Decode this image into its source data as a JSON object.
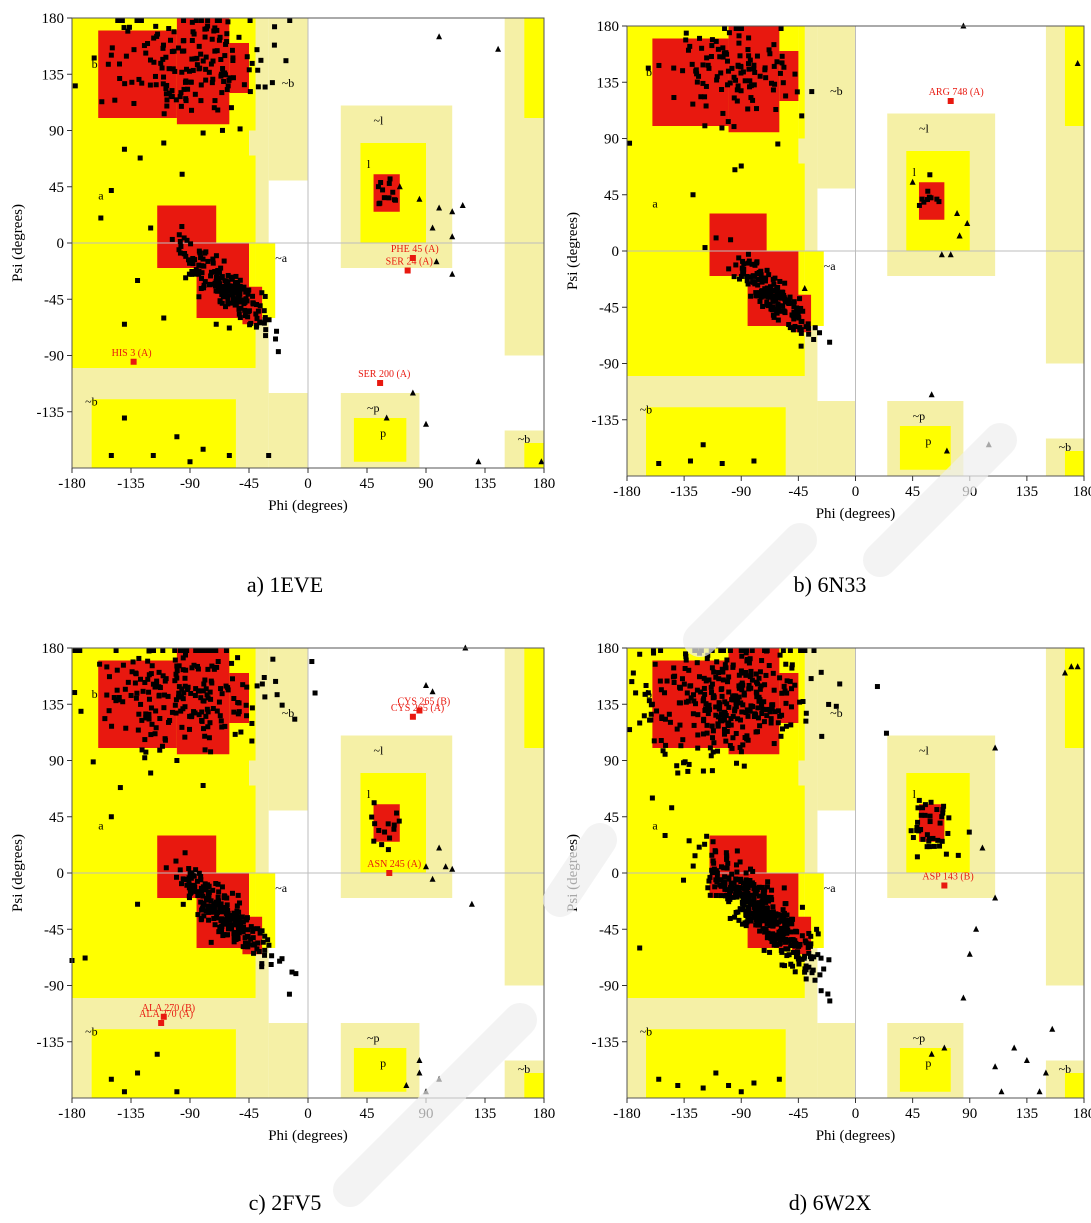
{
  "colors": {
    "core": "#e8180f",
    "allowed": "#ffff00",
    "generous": "#f5f0a6",
    "outlier": "#e8180f",
    "grid": "#bdbdbd"
  },
  "axes": {
    "xlabel": "Phi (degrees)",
    "ylabel": "Psi (degrees)",
    "xticks": [
      "-180",
      "-135",
      "-90",
      "-45",
      "0",
      "45",
      "90",
      "135",
      "180"
    ],
    "yticks": [
      "180",
      "135",
      "90",
      "45",
      "0",
      "-45",
      "-90",
      "-135"
    ]
  },
  "region_letters": {
    "b_core": "b",
    "a_core": "a",
    "l_core": "l",
    "p_core": "p",
    "b_gen": "~b",
    "a_gen": "~a",
    "l_gen": "~l",
    "p_gen": "~p"
  },
  "chart_data": [
    {
      "type": "scatter",
      "caption": "a) 1EVE",
      "xlim": [
        -180,
        180
      ],
      "ylim": [
        -180,
        180
      ],
      "outliers": [
        {
          "label": "HIS 3 (A)",
          "x": -133,
          "y": -95
        },
        {
          "label": "PHE 45 (A)",
          "x": 80,
          "y": -12
        },
        {
          "label": "SER 24 (A)",
          "x": 76,
          "y": -22
        },
        {
          "label": "SER 200 (A)",
          "x": 55,
          "y": -112
        }
      ],
      "clusters": [
        {
          "cx": -95,
          "cy": 145,
          "sx": 30,
          "sy": 22,
          "n": 170
        },
        {
          "cx": -62,
          "cy": -35,
          "sx": 20,
          "sy": 15,
          "n": 190
        },
        {
          "cx": 58,
          "cy": 40,
          "sx": 6,
          "sy": 8,
          "n": 12
        }
      ],
      "scatter_points": [
        [
          -140,
          75
        ],
        [
          -128,
          68
        ],
        [
          -110,
          80
        ],
        [
          -96,
          55
        ],
        [
          -80,
          88
        ],
        [
          -150,
          42
        ],
        [
          -158,
          20
        ],
        [
          -120,
          12
        ],
        [
          -130,
          -30
        ],
        [
          -110,
          -60
        ],
        [
          -140,
          -65
        ],
        [
          -70,
          -65
        ],
        [
          -60,
          -68
        ],
        [
          -150,
          -170
        ],
        [
          -118,
          -170
        ],
        [
          -80,
          -165
        ],
        [
          -60,
          -170
        ],
        [
          -90,
          -175
        ],
        [
          -140,
          -140
        ],
        [
          -30,
          -170
        ],
        [
          -100,
          -155
        ]
      ],
      "glycine_points": [
        [
          85,
          35
        ],
        [
          100,
          28
        ],
        [
          110,
          25
        ],
        [
          118,
          30
        ],
        [
          95,
          12
        ],
        [
          110,
          5
        ],
        [
          98,
          -15
        ],
        [
          110,
          -25
        ],
        [
          100,
          165
        ],
        [
          145,
          155
        ],
        [
          80,
          -120
        ],
        [
          90,
          -145
        ],
        [
          130,
          -175
        ],
        [
          178,
          -175
        ],
        [
          70,
          45
        ],
        [
          60,
          -140
        ]
      ]
    },
    {
      "type": "scatter",
      "caption": "b) 6N33",
      "xlim": [
        -180,
        180
      ],
      "ylim": [
        -180,
        180
      ],
      "outliers": [
        {
          "label": "ARG 748 (A)",
          "x": 75,
          "y": 120
        }
      ],
      "clusters": [
        {
          "cx": -100,
          "cy": 140,
          "sx": 25,
          "sy": 20,
          "n": 120
        },
        {
          "cx": -65,
          "cy": -35,
          "sx": 18,
          "sy": 14,
          "n": 170
        },
        {
          "cx": 58,
          "cy": 40,
          "sx": 6,
          "sy": 6,
          "n": 10
        }
      ],
      "scatter_points": [
        [
          -128,
          45
        ],
        [
          -95,
          65
        ],
        [
          -90,
          68
        ],
        [
          -155,
          -170
        ],
        [
          -130,
          -168
        ],
        [
          -105,
          -170
        ],
        [
          -80,
          -168
        ],
        [
          -120,
          -155
        ]
      ],
      "glycine_points": [
        [
          45,
          55
        ],
        [
          80,
          30
        ],
        [
          88,
          22
        ],
        [
          82,
          12
        ],
        [
          75,
          -3
        ],
        [
          68,
          -3
        ],
        [
          82,
          12
        ],
        [
          105,
          -155
        ],
        [
          -40,
          -30
        ],
        [
          60,
          -115
        ],
        [
          175,
          150
        ],
        [
          -45,
          -50
        ],
        [
          72,
          -160
        ],
        [
          85,
          180
        ]
      ]
    },
    {
      "type": "scatter",
      "caption": "c) 2FV5",
      "xlim": [
        -180,
        180
      ],
      "ylim": [
        -180,
        180
      ],
      "outliers": [
        {
          "label": "CYS 265 (B)",
          "x": 85,
          "y": 130
        },
        {
          "label": "CYS 265 (A)",
          "x": 80,
          "y": 125
        },
        {
          "label": "ASN 245 (A)",
          "x": 62,
          "y": 0
        },
        {
          "label": "ALA 270 (B)",
          "x": -110,
          "y": -115
        },
        {
          "label": "ALA 270 (A)",
          "x": -112,
          "y": -120
        }
      ],
      "clusters": [
        {
          "cx": -95,
          "cy": 145,
          "sx": 32,
          "sy": 22,
          "n": 220
        },
        {
          "cx": -65,
          "cy": -32,
          "sx": 20,
          "sy": 16,
          "n": 230
        },
        {
          "cx": 58,
          "cy": 38,
          "sx": 7,
          "sy": 9,
          "n": 14
        }
      ],
      "scatter_points": [
        [
          -120,
          80
        ],
        [
          -100,
          90
        ],
        [
          -80,
          70
        ],
        [
          -150,
          45
        ],
        [
          -130,
          -25
        ],
        [
          -180,
          -70
        ],
        [
          -170,
          -68
        ],
        [
          -115,
          -145
        ],
        [
          -130,
          -160
        ],
        [
          -140,
          -175
        ],
        [
          -100,
          -175
        ],
        [
          -150,
          -165
        ]
      ],
      "glycine_points": [
        [
          90,
          150
        ],
        [
          95,
          145
        ],
        [
          120,
          180
        ],
        [
          100,
          20
        ],
        [
          105,
          5
        ],
        [
          110,
          3
        ],
        [
          125,
          -25
        ],
        [
          90,
          5
        ],
        [
          95,
          -5
        ],
        [
          85,
          -160
        ],
        [
          90,
          -175
        ],
        [
          75,
          -170
        ],
        [
          100,
          -165
        ],
        [
          85,
          -150
        ]
      ]
    },
    {
      "type": "scatter",
      "caption": "d) 6W2X",
      "xlim": [
        -180,
        180
      ],
      "ylim": [
        -180,
        180
      ],
      "outliers": [
        {
          "label": "ASP 143 (B)",
          "x": 70,
          "y": -10
        }
      ],
      "clusters": [
        {
          "cx": -100,
          "cy": 140,
          "sx": 35,
          "sy": 25,
          "n": 330
        },
        {
          "cx": -75,
          "cy": -30,
          "sx": 25,
          "sy": 20,
          "n": 420
        },
        {
          "cx": 62,
          "cy": 35,
          "sx": 9,
          "sy": 12,
          "n": 40
        }
      ],
      "scatter_points": [
        [
          -170,
          175
        ],
        [
          -175,
          160
        ],
        [
          -165,
          150
        ],
        [
          -160,
          135
        ],
        [
          -170,
          120
        ],
        [
          -150,
          95
        ],
        [
          -140,
          80
        ],
        [
          -160,
          60
        ],
        [
          -150,
          30
        ],
        [
          -170,
          -60
        ],
        [
          -155,
          -165
        ],
        [
          -140,
          -170
        ],
        [
          -120,
          -172
        ],
        [
          -100,
          -170
        ],
        [
          -80,
          -168
        ],
        [
          -60,
          -165
        ],
        [
          -110,
          -160
        ],
        [
          -90,
          -175
        ]
      ],
      "glycine_points": [
        [
          110,
          100
        ],
        [
          100,
          20
        ],
        [
          110,
          -20
        ],
        [
          95,
          -45
        ],
        [
          90,
          -65
        ],
        [
          85,
          -100
        ],
        [
          70,
          -140
        ],
        [
          60,
          -145
        ],
        [
          110,
          -155
        ],
        [
          135,
          -150
        ],
        [
          125,
          -140
        ],
        [
          150,
          -160
        ],
        [
          145,
          -175
        ],
        [
          155,
          -125
        ],
        [
          115,
          -175
        ],
        [
          170,
          165
        ],
        [
          175,
          165
        ],
        [
          165,
          160
        ]
      ]
    }
  ]
}
